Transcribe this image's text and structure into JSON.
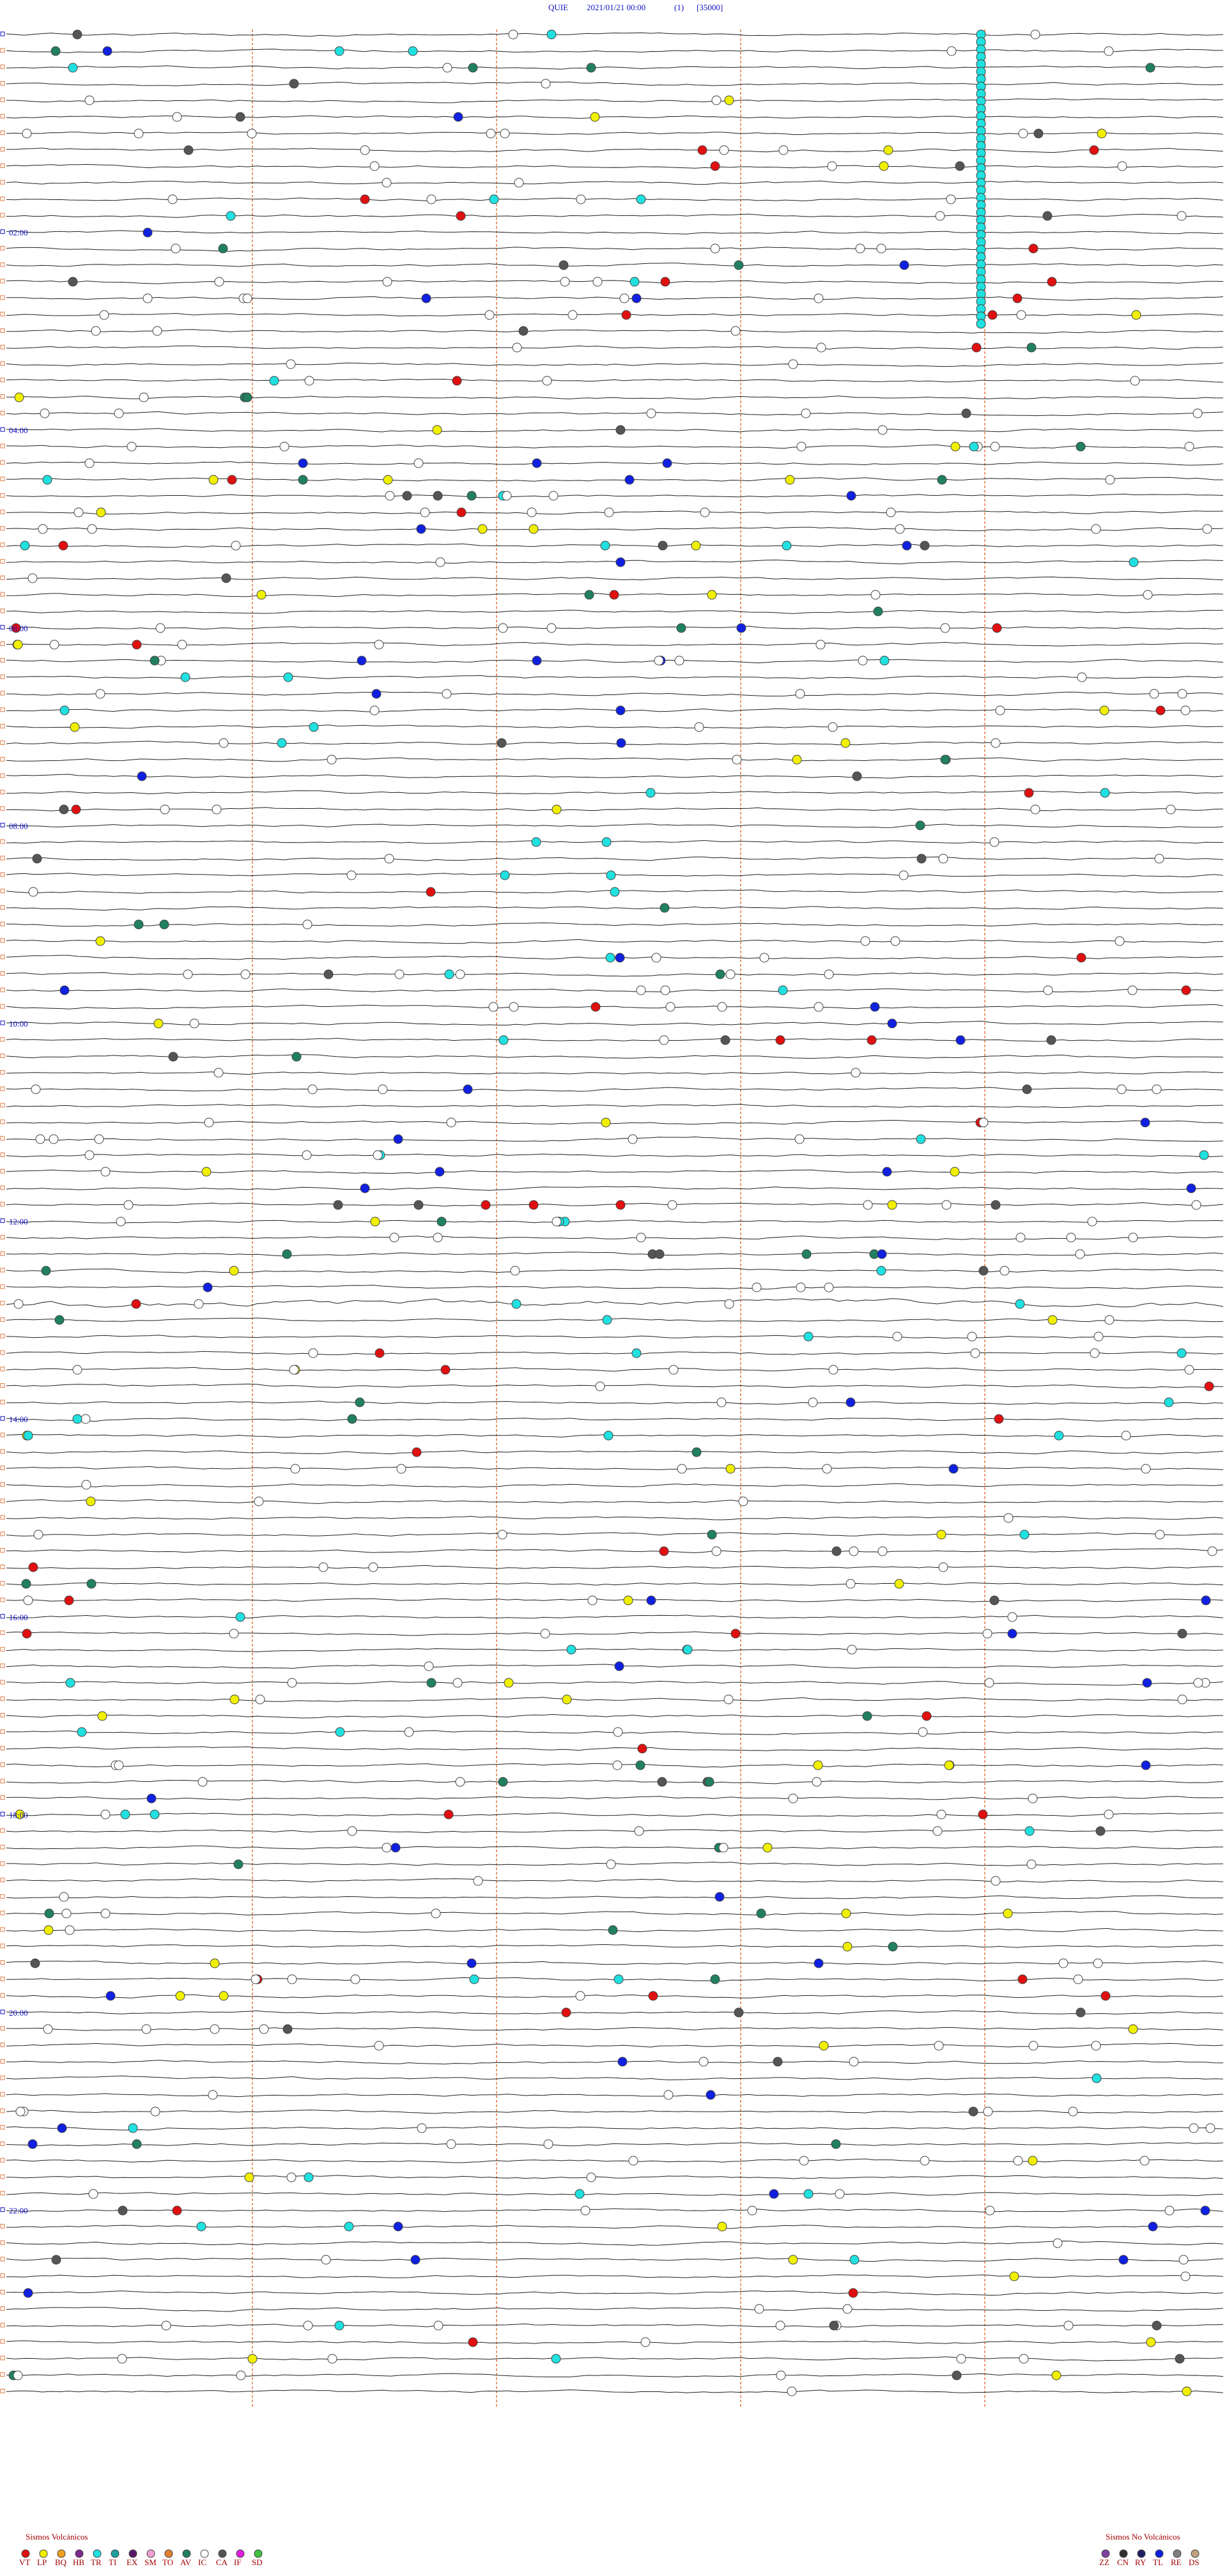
{
  "header": {
    "station": "QUIE",
    "datetime": "2021/01/21 00:00",
    "channel": "(1)",
    "scale": "[35000]"
  },
  "hour_labels": [
    "02:00",
    "04:00",
    "06:00",
    "08:00",
    "10:00",
    "12:00",
    "14:00",
    "16:00",
    "18:00",
    "20:00",
    "22:00"
  ],
  "legend": {
    "volcanic": {
      "title": "Sismos Volcánicos",
      "codes": [
        {
          "code": "VT",
          "color": "#e01010"
        },
        {
          "code": "LP",
          "color": "#f0f000"
        },
        {
          "code": "BQ",
          "color": "#f0a020"
        },
        {
          "code": "HB",
          "color": "#7a2a8a"
        },
        {
          "code": "TR",
          "color": "#20e0e0"
        },
        {
          "code": "TI",
          "color": "#20a0a0"
        },
        {
          "code": "EX",
          "color": "#5a1a6a"
        },
        {
          "code": "SM",
          "color": "#f0a0d0"
        },
        {
          "code": "TO",
          "color": "#e08030"
        },
        {
          "code": "AV",
          "color": "#208060"
        },
        {
          "code": "IC",
          "color": "#ffffff"
        },
        {
          "code": "CA",
          "color": "#555555"
        },
        {
          "code": "IF",
          "color": "#e020e0"
        },
        {
          "code": "SD",
          "color": "#40c040"
        }
      ]
    },
    "non_volcanic": {
      "title": "Sismos No Volcánicos",
      "codes": [
        {
          "code": "ZZ",
          "color": "#8040a0"
        },
        {
          "code": "CN",
          "color": "#303030"
        },
        {
          "code": "RY",
          "color": "#202060"
        },
        {
          "code": "TL",
          "color": "#1020e0"
        },
        {
          "code": "RE",
          "color": "#808080"
        },
        {
          "code": "DS",
          "color": "#c0a080"
        }
      ]
    }
  }
}
